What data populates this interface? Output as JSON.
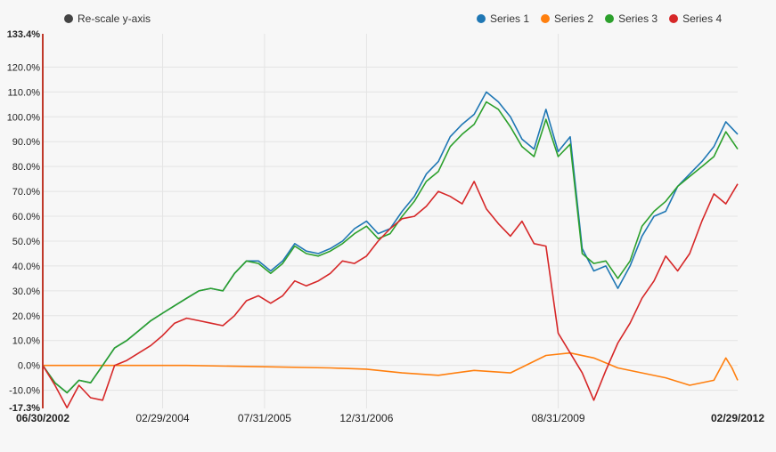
{
  "rescale_label": "Re-scale y-axis",
  "chart_data": {
    "type": "line",
    "y_unit": "%",
    "ylim": [
      -17.3,
      133.4
    ],
    "ymin_label": "-17.3%",
    "ymax_label": "133.4%",
    "y_ticks": [
      -10,
      0,
      10,
      20,
      30,
      40,
      50,
      60,
      70,
      80,
      90,
      100,
      110,
      120
    ],
    "y_tick_labels": [
      "-10.0%",
      "0.0%",
      "10.0%",
      "20.0%",
      "30.0%",
      "40.0%",
      "50.0%",
      "60.0%",
      "70.0%",
      "80.0%",
      "90.0%",
      "100.0%",
      "110.0%",
      "120.0%"
    ],
    "x_range": [
      "06/30/2002",
      "02/29/2012"
    ],
    "x_tick_dates": [
      "2002-06-30",
      "2004-02-29",
      "2005-07-31",
      "2006-12-31",
      "2009-08-31",
      "2012-02-29"
    ],
    "x_tick_labels": [
      "06/30/2002",
      "02/29/2004",
      "07/31/2005",
      "12/31/2006",
      "08/31/2009",
      "02/29/2012"
    ],
    "x_tick_bold": [
      true,
      false,
      false,
      false,
      false,
      true
    ],
    "grid": true,
    "legend_position": "top-right",
    "series": [
      {
        "name": "Series 1",
        "color": "#1f77b4",
        "points": [
          [
            "2002-06-30",
            0
          ],
          [
            "2002-08-31",
            -7
          ],
          [
            "2002-10-31",
            -11
          ],
          [
            "2002-12-31",
            -6
          ],
          [
            "2003-02-28",
            -7
          ],
          [
            "2003-04-30",
            0
          ],
          [
            "2003-06-30",
            7
          ],
          [
            "2003-08-31",
            10
          ],
          [
            "2003-10-31",
            14
          ],
          [
            "2003-12-31",
            18
          ],
          [
            "2004-02-29",
            21
          ],
          [
            "2004-04-30",
            24
          ],
          [
            "2004-06-30",
            27
          ],
          [
            "2004-08-31",
            30
          ],
          [
            "2004-10-31",
            31
          ],
          [
            "2004-12-31",
            30
          ],
          [
            "2005-02-28",
            37
          ],
          [
            "2005-04-30",
            42
          ],
          [
            "2005-06-30",
            42
          ],
          [
            "2005-08-31",
            38
          ],
          [
            "2005-10-31",
            42
          ],
          [
            "2005-12-31",
            49
          ],
          [
            "2006-02-28",
            46
          ],
          [
            "2006-04-30",
            45
          ],
          [
            "2006-06-30",
            47
          ],
          [
            "2006-08-31",
            50
          ],
          [
            "2006-10-31",
            55
          ],
          [
            "2006-12-31",
            58
          ],
          [
            "2007-02-28",
            53
          ],
          [
            "2007-04-30",
            55
          ],
          [
            "2007-06-30",
            62
          ],
          [
            "2007-08-31",
            68
          ],
          [
            "2007-10-31",
            77
          ],
          [
            "2007-12-31",
            82
          ],
          [
            "2008-02-29",
            92
          ],
          [
            "2008-04-30",
            97
          ],
          [
            "2008-06-30",
            101
          ],
          [
            "2008-08-31",
            110
          ],
          [
            "2008-10-31",
            106
          ],
          [
            "2008-12-31",
            100
          ],
          [
            "2009-02-28",
            91
          ],
          [
            "2009-04-30",
            87
          ],
          [
            "2009-06-30",
            103
          ],
          [
            "2009-08-31",
            86
          ],
          [
            "2009-10-31",
            92
          ],
          [
            "2009-12-31",
            47
          ],
          [
            "2010-02-28",
            38
          ],
          [
            "2010-04-30",
            40
          ],
          [
            "2010-06-30",
            31
          ],
          [
            "2010-08-31",
            40
          ],
          [
            "2010-10-31",
            52
          ],
          [
            "2010-12-31",
            60
          ],
          [
            "2011-02-28",
            62
          ],
          [
            "2011-04-30",
            72
          ],
          [
            "2011-06-30",
            77
          ],
          [
            "2011-08-31",
            82
          ],
          [
            "2011-10-31",
            88
          ],
          [
            "2011-12-31",
            98
          ],
          [
            "2012-02-29",
            93
          ]
        ]
      },
      {
        "name": "Series 2",
        "color": "#ff7f0e",
        "points": [
          [
            "2002-06-30",
            0
          ],
          [
            "2003-06-30",
            0
          ],
          [
            "2004-06-30",
            0
          ],
          [
            "2005-06-30",
            -0.5
          ],
          [
            "2006-06-30",
            -1
          ],
          [
            "2006-12-31",
            -1.5
          ],
          [
            "2007-06-30",
            -3
          ],
          [
            "2007-12-31",
            -4
          ],
          [
            "2008-06-30",
            -2
          ],
          [
            "2008-12-31",
            -3
          ],
          [
            "2009-06-30",
            4
          ],
          [
            "2009-10-31",
            5
          ],
          [
            "2010-02-28",
            3
          ],
          [
            "2010-06-30",
            -1
          ],
          [
            "2010-10-31",
            -3
          ],
          [
            "2011-02-28",
            -5
          ],
          [
            "2011-06-30",
            -8
          ],
          [
            "2011-10-31",
            -6
          ],
          [
            "2011-12-31",
            3
          ],
          [
            "2012-01-31",
            -1
          ],
          [
            "2012-02-29",
            -6
          ]
        ]
      },
      {
        "name": "Series 3",
        "color": "#2ca02c",
        "points": [
          [
            "2002-06-30",
            0
          ],
          [
            "2002-08-31",
            -7
          ],
          [
            "2002-10-31",
            -11
          ],
          [
            "2002-12-31",
            -6
          ],
          [
            "2003-02-28",
            -7
          ],
          [
            "2003-04-30",
            0
          ],
          [
            "2003-06-30",
            7
          ],
          [
            "2003-08-31",
            10
          ],
          [
            "2003-10-31",
            14
          ],
          [
            "2003-12-31",
            18
          ],
          [
            "2004-02-29",
            21
          ],
          [
            "2004-04-30",
            24
          ],
          [
            "2004-06-30",
            27
          ],
          [
            "2004-08-31",
            30
          ],
          [
            "2004-10-31",
            31
          ],
          [
            "2004-12-31",
            30
          ],
          [
            "2005-02-28",
            37
          ],
          [
            "2005-04-30",
            42
          ],
          [
            "2005-06-30",
            41
          ],
          [
            "2005-08-31",
            37
          ],
          [
            "2005-10-31",
            41
          ],
          [
            "2005-12-31",
            48
          ],
          [
            "2006-02-28",
            45
          ],
          [
            "2006-04-30",
            44
          ],
          [
            "2006-06-30",
            46
          ],
          [
            "2006-08-31",
            49
          ],
          [
            "2006-10-31",
            53
          ],
          [
            "2006-12-31",
            56
          ],
          [
            "2007-02-28",
            51
          ],
          [
            "2007-04-30",
            53
          ],
          [
            "2007-06-30",
            60
          ],
          [
            "2007-08-31",
            66
          ],
          [
            "2007-10-31",
            74
          ],
          [
            "2007-12-31",
            78
          ],
          [
            "2008-02-29",
            88
          ],
          [
            "2008-04-30",
            93
          ],
          [
            "2008-06-30",
            97
          ],
          [
            "2008-08-31",
            106
          ],
          [
            "2008-10-31",
            103
          ],
          [
            "2008-12-31",
            96
          ],
          [
            "2009-02-28",
            88
          ],
          [
            "2009-04-30",
            84
          ],
          [
            "2009-06-30",
            99
          ],
          [
            "2009-08-31",
            84
          ],
          [
            "2009-10-31",
            89
          ],
          [
            "2009-12-31",
            45
          ],
          [
            "2010-02-28",
            41
          ],
          [
            "2010-04-30",
            42
          ],
          [
            "2010-06-30",
            35
          ],
          [
            "2010-08-31",
            42
          ],
          [
            "2010-10-31",
            56
          ],
          [
            "2010-12-31",
            62
          ],
          [
            "2011-02-28",
            66
          ],
          [
            "2011-04-30",
            72
          ],
          [
            "2011-06-30",
            76
          ],
          [
            "2011-08-31",
            80
          ],
          [
            "2011-10-31",
            84
          ],
          [
            "2011-12-31",
            94
          ],
          [
            "2012-02-29",
            87
          ]
        ]
      },
      {
        "name": "Series 4",
        "color": "#d62728",
        "points": [
          [
            "2002-06-30",
            0
          ],
          [
            "2002-08-31",
            -8
          ],
          [
            "2002-10-31",
            -17
          ],
          [
            "2002-12-31",
            -8
          ],
          [
            "2003-02-28",
            -13
          ],
          [
            "2003-04-30",
            -14
          ],
          [
            "2003-06-30",
            0
          ],
          [
            "2003-08-31",
            2
          ],
          [
            "2003-10-31",
            5
          ],
          [
            "2003-12-31",
            8
          ],
          [
            "2004-02-29",
            12
          ],
          [
            "2004-04-30",
            17
          ],
          [
            "2004-06-30",
            19
          ],
          [
            "2004-08-31",
            18
          ],
          [
            "2004-10-31",
            17
          ],
          [
            "2004-12-31",
            16
          ],
          [
            "2005-02-28",
            20
          ],
          [
            "2005-04-30",
            26
          ],
          [
            "2005-06-30",
            28
          ],
          [
            "2005-08-31",
            25
          ],
          [
            "2005-10-31",
            28
          ],
          [
            "2005-12-31",
            34
          ],
          [
            "2006-02-28",
            32
          ],
          [
            "2006-04-30",
            34
          ],
          [
            "2006-06-30",
            37
          ],
          [
            "2006-08-31",
            42
          ],
          [
            "2006-10-31",
            41
          ],
          [
            "2006-12-31",
            44
          ],
          [
            "2007-02-28",
            50
          ],
          [
            "2007-04-30",
            55
          ],
          [
            "2007-06-30",
            59
          ],
          [
            "2007-08-31",
            60
          ],
          [
            "2007-10-31",
            64
          ],
          [
            "2007-12-31",
            70
          ],
          [
            "2008-02-29",
            68
          ],
          [
            "2008-04-30",
            65
          ],
          [
            "2008-06-30",
            74
          ],
          [
            "2008-08-31",
            63
          ],
          [
            "2008-10-31",
            57
          ],
          [
            "2008-12-31",
            52
          ],
          [
            "2009-02-28",
            58
          ],
          [
            "2009-04-30",
            49
          ],
          [
            "2009-06-30",
            48
          ],
          [
            "2009-08-31",
            13
          ],
          [
            "2009-10-31",
            5
          ],
          [
            "2009-12-31",
            -3
          ],
          [
            "2010-02-28",
            -14
          ],
          [
            "2010-04-30",
            -2
          ],
          [
            "2010-06-30",
            9
          ],
          [
            "2010-08-31",
            17
          ],
          [
            "2010-10-31",
            27
          ],
          [
            "2010-12-31",
            34
          ],
          [
            "2011-02-28",
            44
          ],
          [
            "2011-04-30",
            38
          ],
          [
            "2011-06-30",
            45
          ],
          [
            "2011-08-31",
            58
          ],
          [
            "2011-10-31",
            69
          ],
          [
            "2011-12-31",
            65
          ],
          [
            "2012-02-29",
            73
          ]
        ]
      }
    ]
  }
}
